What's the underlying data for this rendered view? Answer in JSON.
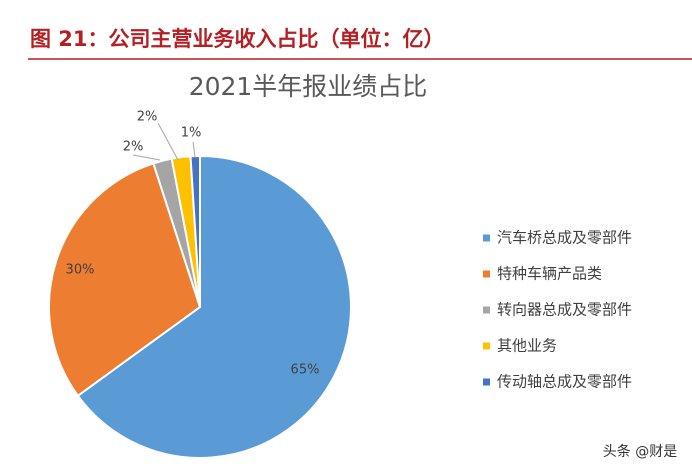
{
  "header": {
    "title": "图 21：公司主营业务收入占比（单位：亿）"
  },
  "chart_data": {
    "type": "pie",
    "title": "2021半年报业绩占比",
    "categories": [
      "汽车桥总成及零部件",
      "特种车辆产品类",
      "转向器总成及零部件",
      "其他业务",
      "传动轴总成及零部件"
    ],
    "values": [
      65,
      30,
      2,
      2,
      1
    ],
    "value_labels": [
      "65%",
      "30%",
      "2%",
      "2%",
      "1%"
    ],
    "colors": [
      "#5b9bd5",
      "#ed7d31",
      "#a5a5a5",
      "#ffc000",
      "#4472c4"
    ],
    "legend": "right"
  },
  "watermark": "头条 @财是"
}
